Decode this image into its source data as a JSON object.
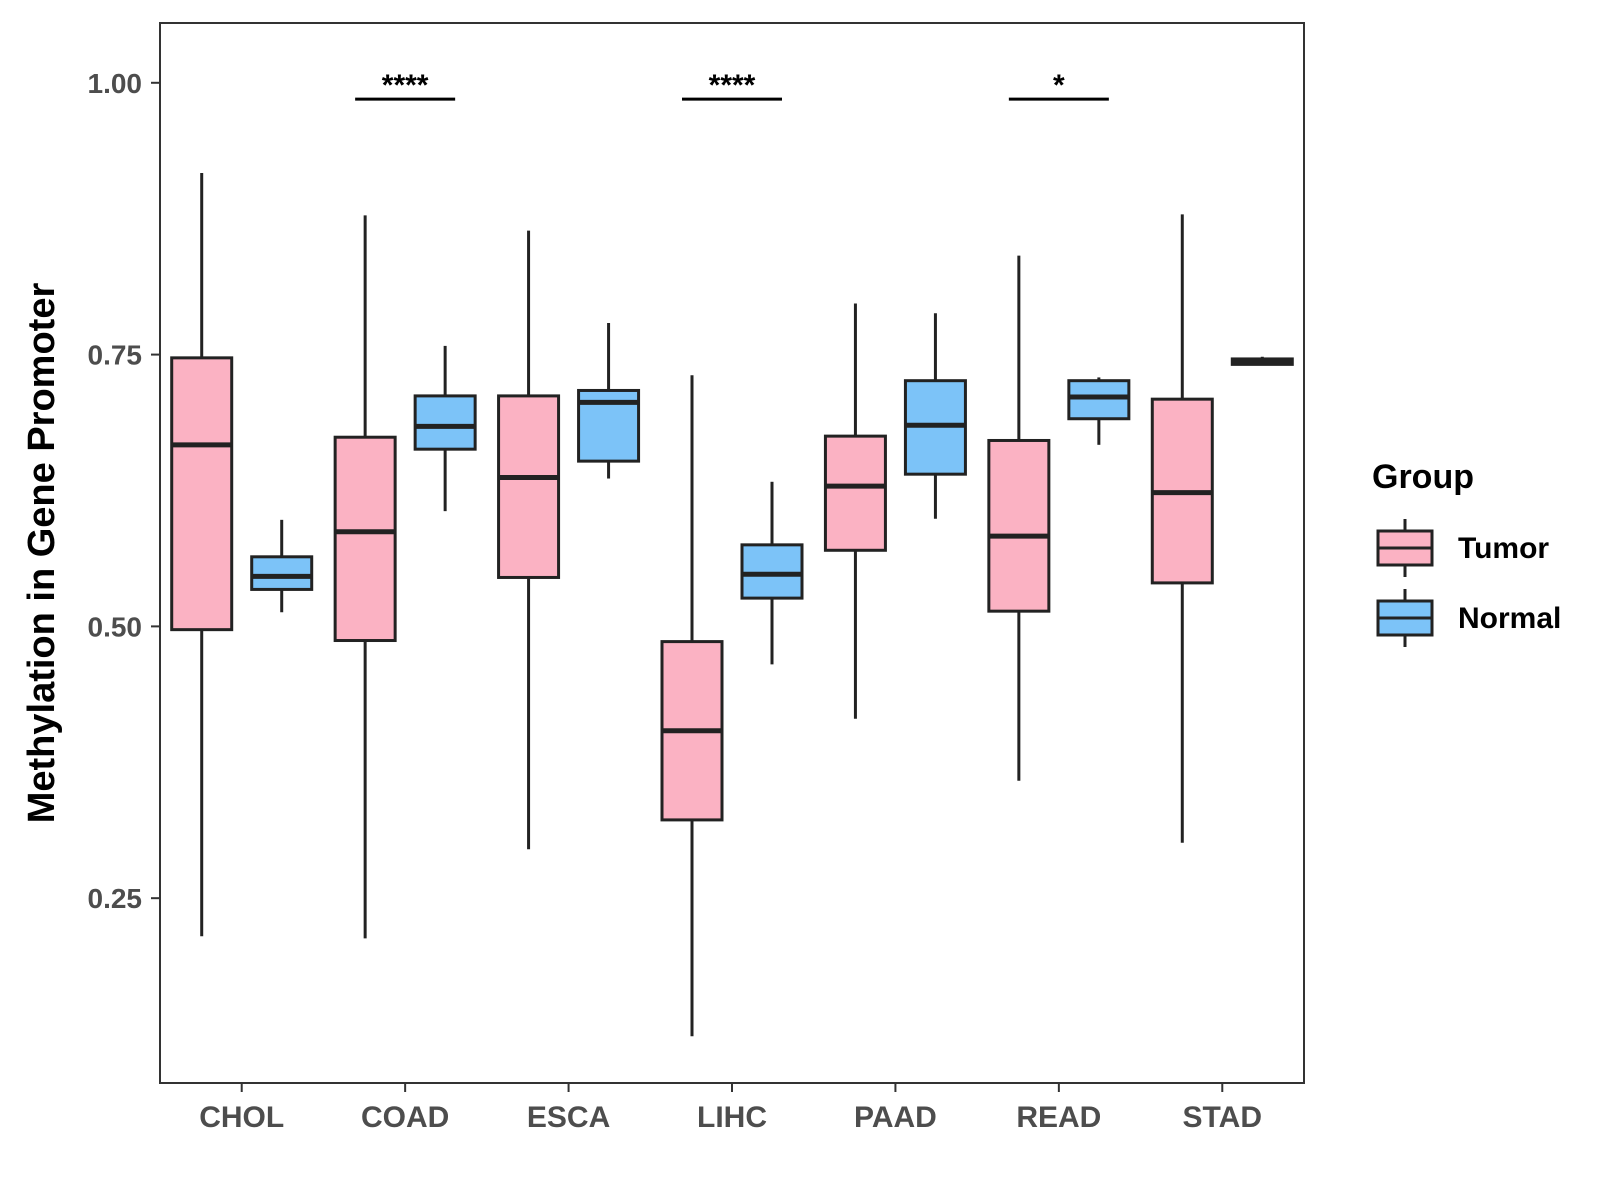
{
  "chart_data": {
    "type": "boxplot",
    "title": "",
    "xlabel": "",
    "ylabel": "Methylation in Gene Promoter",
    "ylim": [
      0.08,
      1.055
    ],
    "yticks": [
      0.25,
      0.5,
      0.75,
      1.0
    ],
    "ytick_labels": [
      "0.25",
      "0.50",
      "0.75",
      "1.00"
    ],
    "categories": [
      "CHOL",
      "COAD",
      "ESCA",
      "LIHC",
      "PAAD",
      "READ",
      "STAD"
    ],
    "legend": {
      "title": "Group",
      "position": "right",
      "entries": [
        {
          "name": "Tumor",
          "color": "#FBB2C3"
        },
        {
          "name": "Normal",
          "color": "#7CC3F8"
        }
      ]
    },
    "series": [
      {
        "name": "Tumor",
        "color": "#FBB2C3",
        "boxes": [
          {
            "category": "CHOL",
            "min": 0.215,
            "q1": 0.497,
            "median": 0.667,
            "q3": 0.747,
            "max": 0.917
          },
          {
            "category": "COAD",
            "min": 0.213,
            "q1": 0.487,
            "median": 0.587,
            "q3": 0.674,
            "max": 0.878
          },
          {
            "category": "ESCA",
            "min": 0.295,
            "q1": 0.545,
            "median": 0.637,
            "q3": 0.712,
            "max": 0.864
          },
          {
            "category": "LIHC",
            "min": 0.123,
            "q1": 0.322,
            "median": 0.404,
            "q3": 0.486,
            "max": 0.731
          },
          {
            "category": "PAAD",
            "min": 0.415,
            "q1": 0.57,
            "median": 0.629,
            "q3": 0.675,
            "max": 0.797
          },
          {
            "category": "READ",
            "min": 0.358,
            "q1": 0.514,
            "median": 0.583,
            "q3": 0.671,
            "max": 0.841
          },
          {
            "category": "STAD",
            "min": 0.301,
            "q1": 0.54,
            "median": 0.623,
            "q3": 0.709,
            "max": 0.879
          }
        ]
      },
      {
        "name": "Normal",
        "color": "#7CC3F8",
        "boxes": [
          {
            "category": "CHOL",
            "min": 0.513,
            "q1": 0.534,
            "median": 0.546,
            "q3": 0.564,
            "max": 0.598
          },
          {
            "category": "COAD",
            "min": 0.606,
            "q1": 0.663,
            "median": 0.684,
            "q3": 0.712,
            "max": 0.758
          },
          {
            "category": "ESCA",
            "min": 0.636,
            "q1": 0.652,
            "median": 0.706,
            "q3": 0.717,
            "max": 0.779
          },
          {
            "category": "LIHC",
            "min": 0.465,
            "q1": 0.526,
            "median": 0.548,
            "q3": 0.575,
            "max": 0.633
          },
          {
            "category": "PAAD",
            "min": 0.599,
            "q1": 0.64,
            "median": 0.685,
            "q3": 0.726,
            "max": 0.788
          },
          {
            "category": "READ",
            "min": 0.667,
            "q1": 0.691,
            "median": 0.711,
            "q3": 0.726,
            "max": 0.729
          },
          {
            "category": "STAD",
            "min": 0.74,
            "q1": 0.741,
            "median": 0.743,
            "q3": 0.746,
            "max": 0.748
          }
        ]
      }
    ],
    "annotations": [
      {
        "category": "COAD",
        "text": "****",
        "y": 0.985
      },
      {
        "category": "LIHC",
        "text": "****",
        "y": 0.985
      },
      {
        "category": "READ",
        "text": "*",
        "y": 0.985
      }
    ],
    "grid": false
  }
}
